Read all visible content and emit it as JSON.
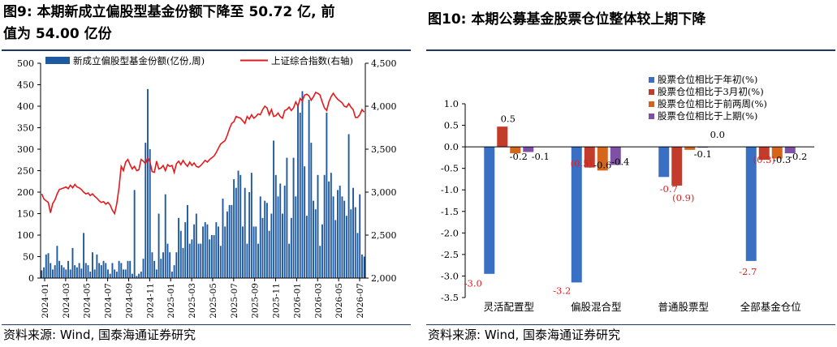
{
  "left": {
    "title_line1": "图9:  本期新成立偏股型基金份额下降至 50.72 亿,  前",
    "title_line2": "值为 54.00 亿份",
    "source": "资料来源:  Wind,  国泰海通证券研究"
  },
  "right": {
    "title": "图10:  本期公募基金股票仓位整体较上期下降",
    "source": "资料来源:  Wind,  国泰海通证券研究"
  },
  "chart_data": [
    {
      "type": "bar+line",
      "title": "",
      "legend": [
        "新成立偏股型基金份额(亿份,周)",
        "上证综合指数(右轴)"
      ],
      "legend_placement": "top",
      "y_left_range": [
        0,
        500
      ],
      "y_left_ticks": [
        "0",
        "50",
        "100",
        "150",
        "200",
        "250",
        "300",
        "350",
        "400",
        "450",
        "500"
      ],
      "y_right_range": [
        2000,
        4500
      ],
      "y_right_ticks": [
        "2,000",
        "2,500",
        "3,000",
        "3,500",
        "4,000",
        "4,500"
      ],
      "x_tick_labels": [
        "2024-01",
        "2024-03",
        "2024-05",
        "2024-07",
        "2024-09",
        "2024-11",
        "2025-01",
        "2025-03",
        "2025-05",
        "2025-07",
        "2025-09",
        "2025-11",
        "2026-01",
        "2026-03",
        "2026-05",
        "2026-07"
      ],
      "colors": {
        "bars": "#1f5aa0",
        "line": "#e41a1c"
      },
      "bar_values": [
        18,
        25,
        55,
        58,
        35,
        20,
        30,
        75,
        40,
        30,
        25,
        20,
        40,
        20,
        70,
        30,
        25,
        35,
        22,
        105,
        35,
        30,
        15,
        60,
        20,
        55,
        35,
        30,
        40,
        35,
        20,
        10,
        35,
        20,
        15,
        40,
        35,
        20,
        20,
        40,
        40,
        10,
        205,
        5,
        10,
        15,
        45,
        315,
        440,
        300,
        60,
        40,
        20,
        150,
        45,
        60,
        195,
        80,
        60,
        15,
        30,
        60,
        140,
        110,
        70,
        130,
        170,
        80,
        90,
        125,
        150,
        80,
        80,
        120,
        130,
        125,
        90,
        100,
        100,
        130,
        120,
        75,
        185,
        120,
        155,
        170,
        170,
        230,
        210,
        250,
        240,
        120,
        210,
        80,
        200,
        245,
        120,
        120,
        80,
        190,
        140,
        180,
        175,
        110,
        150,
        320,
        240,
        190,
        220,
        150,
        215,
        280,
        80,
        140,
        280,
        190,
        400,
        385,
        435,
        260,
        145,
        415,
        315,
        180,
        160,
        240,
        75,
        125,
        240,
        385,
        225,
        245,
        190,
        135,
        205,
        215,
        190,
        180,
        145,
        335,
        160,
        210,
        165,
        105,
        195,
        55,
        50
      ],
      "line_values": [
        2980,
        2920,
        2900,
        2880,
        2760,
        2870,
        2910,
        2980,
        3030,
        3040,
        3050,
        3060,
        3040,
        3080,
        3050,
        3090,
        3060,
        3050,
        3030,
        3000,
        2980,
        2990,
        2960,
        2980,
        2950,
        2930,
        2900,
        2880,
        2890,
        2860,
        2880,
        2850,
        2790,
        2750,
        2870,
        3050,
        3300,
        3250,
        3350,
        3380,
        3320,
        3270,
        3300,
        3250,
        3260,
        3380,
        3360,
        3330,
        3400,
        3350,
        3240,
        3230,
        3360,
        3270,
        3280,
        3310,
        3250,
        3320,
        3300,
        3310,
        3230,
        3330,
        3360,
        3320,
        3370,
        3330,
        3300,
        3350,
        3310,
        3340,
        3300,
        3290,
        3310,
        3340,
        3370,
        3350,
        3380,
        3400,
        3420,
        3460,
        3510,
        3560,
        3580,
        3600,
        3660,
        3740,
        3800,
        3820,
        3880,
        3870,
        3860,
        3830,
        3800,
        3880,
        3850,
        3900,
        3860,
        3880,
        3910,
        3900,
        3960,
        4000,
        3980,
        3900,
        3960,
        3880,
        3890,
        3920,
        3880,
        3860,
        3950,
        3960,
        3990,
        3950,
        3980,
        4050,
        4000,
        4090,
        4060,
        4130,
        4140,
        4120,
        4070,
        4110,
        4160,
        4150,
        4130,
        4050,
        3980,
        3950,
        4050,
        4110,
        4150,
        4110,
        4080,
        4060,
        4040,
        4000,
        3990,
        4030,
        3990,
        3960,
        3870,
        3870,
        3900,
        3960,
        3930
      ]
    },
    {
      "type": "bar",
      "title": "",
      "categories": [
        "灵活配置型",
        "偏股混合型",
        "普通股票型",
        "全部基金仓位"
      ],
      "ylim": [
        -3.5,
        1.0
      ],
      "y_ticks": [
        "1.0",
        "0.5",
        "0.0",
        "-0.5",
        "-1.0",
        "-1.5",
        "-2.0",
        "-2.5",
        "-3.0",
        "-3.5"
      ],
      "legend_placement": "top-right",
      "series": [
        {
          "name": "股票仓位相比于年初(%)",
          "color": "#3a70c4",
          "values": [
            -2.95,
            -3.15,
            -0.7,
            -2.65
          ]
        },
        {
          "name": "股票仓位相比于3月初(%)",
          "color": "#c23b2b",
          "values": [
            0.47,
            -0.48,
            -0.9,
            -0.3
          ]
        },
        {
          "name": "股票仓位相比于前两周(%)",
          "color": "#d4651a",
          "values": [
            -0.15,
            -0.55,
            -0.07,
            -0.27
          ]
        },
        {
          "name": "股票仓位相比于上期(%)",
          "color": "#7f51a6",
          "values": [
            -0.12,
            -0.42,
            -0.02,
            -0.15
          ]
        }
      ],
      "annotations": [
        {
          "text": "0.5",
          "color": "#000000",
          "category": 0,
          "y": 0.65
        },
        {
          "text": "-0.2",
          "color": "#000000",
          "category": 0,
          "y": -0.22
        },
        {
          "text": "-0.1",
          "color": "#000000",
          "category": 0,
          "y": -0.22
        },
        {
          "text": "-3.0",
          "color": "#e41a1c",
          "category": 0,
          "y": -3.17
        },
        {
          "text": "(0.5)",
          "color": "#e41a1c",
          "category": 1,
          "y": -0.38
        },
        {
          "text": "-0.6",
          "color": "#000000",
          "category": 1,
          "y": -0.42
        },
        {
          "text": "-0.4",
          "color": "#000000",
          "category": 1,
          "y": -0.35
        },
        {
          "text": "-3.2",
          "color": "#e41a1c",
          "category": 1,
          "y": -3.34
        },
        {
          "text": "0.0",
          "color": "#000000",
          "category": 2,
          "y": 0.28
        },
        {
          "text": "-0.1",
          "color": "#000000",
          "category": 2,
          "y": -0.17
        },
        {
          "text": "-0.7",
          "color": "#e41a1c",
          "category": 2,
          "y": -0.98
        },
        {
          "text": "(0.9)",
          "color": "#e41a1c",
          "category": 2,
          "y": -1.18
        },
        {
          "text": "(0.3)",
          "color": "#e41a1c",
          "category": 3,
          "y": -0.3
        },
        {
          "text": "-0.3",
          "color": "#000000",
          "category": 3,
          "y": -0.3
        },
        {
          "text": "-0.2",
          "color": "#000000",
          "category": 3,
          "y": -0.22
        },
        {
          "text": "-2.7",
          "color": "#e41a1c",
          "category": 3,
          "y": -2.9
        }
      ]
    }
  ]
}
